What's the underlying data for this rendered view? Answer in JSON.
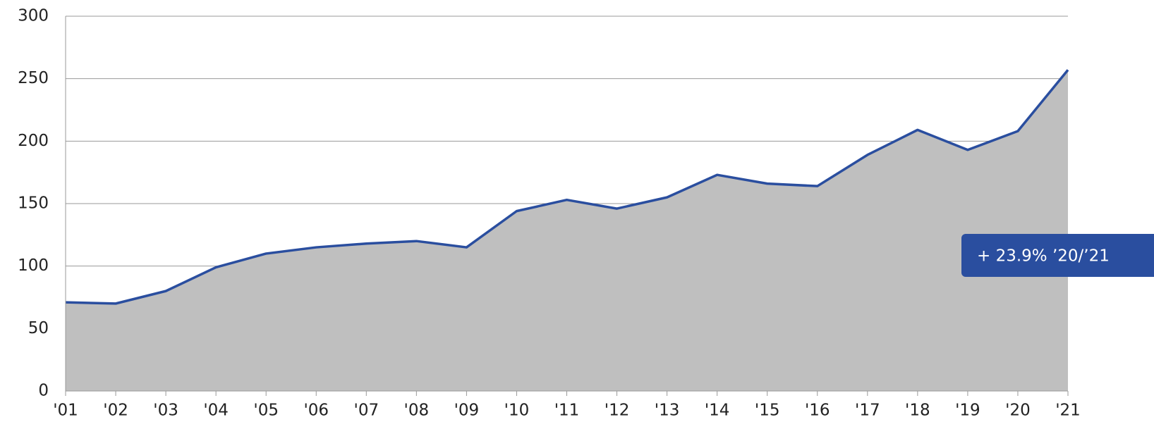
{
  "chart_data": {
    "type": "area",
    "categories": [
      "'01",
      "'02",
      "'03",
      "'04",
      "'05",
      "'06",
      "'07",
      "'08",
      "'09",
      "'10",
      "'11",
      "'12",
      "'13",
      "'14",
      "'15",
      "'16",
      "'17",
      "'18",
      "'19",
      "'20",
      "'21"
    ],
    "series": [
      {
        "color": "#2a4e9f",
        "fill": "#bfbfbf",
        "values": [
          71,
          70,
          80,
          99,
          110,
          115,
          118,
          120,
          115,
          144,
          153,
          146,
          155,
          173,
          166,
          164,
          189,
          209,
          193,
          208,
          257
        ]
      }
    ],
    "ylim": [
      0,
      300
    ],
    "yticks": [
      0,
      50,
      100,
      150,
      200,
      250,
      300
    ],
    "grid": true,
    "annotation": {
      "text": "+ 23.9% ’20/’21",
      "color": "#2a4e9f"
    }
  }
}
